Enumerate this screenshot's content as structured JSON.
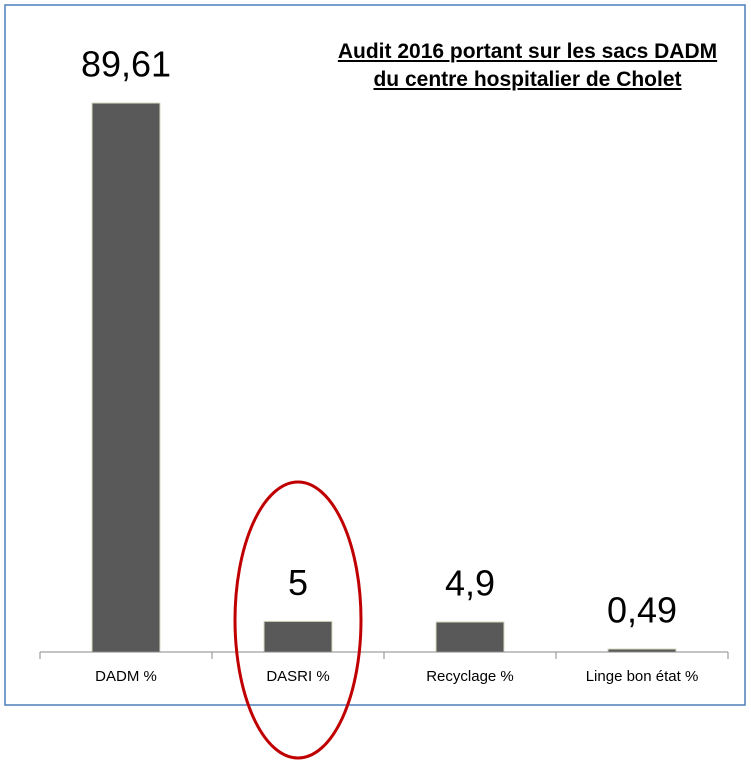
{
  "chart_data": {
    "type": "bar",
    "title": "Audit 2016 portant sur les sacs DADM du centre hospitalier de Cholet",
    "categories": [
      "DADM %",
      "DASRI %",
      "Recyclage %",
      "Linge bon état %"
    ],
    "values": [
      89.61,
      5,
      4.9,
      0.49
    ],
    "value_labels": [
      "89,61",
      "5",
      "4,9",
      "0,49"
    ],
    "color": "#595959"
  }
}
